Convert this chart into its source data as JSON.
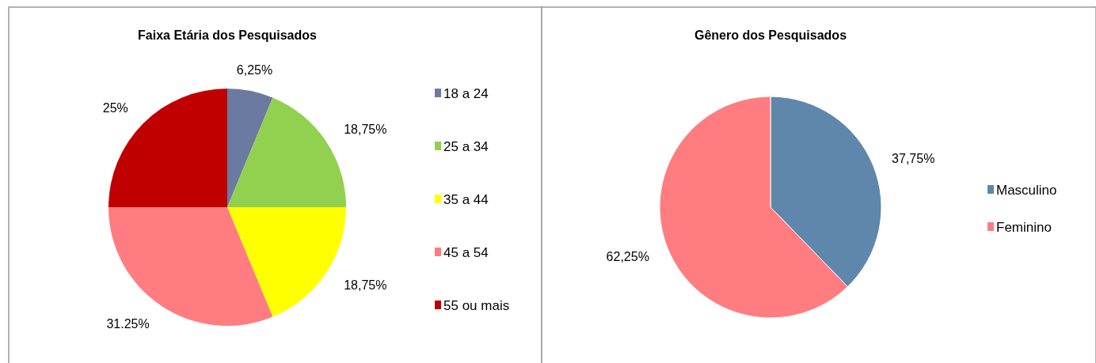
{
  "chart_data": [
    {
      "type": "pie",
      "title": "Faixa Etária dos Pesquisados",
      "categories": [
        "18 a 24",
        "25 a 34",
        "35 a 44",
        "45 a 54",
        "55 ou mais"
      ],
      "values": [
        6.25,
        18.75,
        18.75,
        31.25,
        25
      ],
      "colors": [
        "#6b7aa1",
        "#92d050",
        "#ffff00",
        "#ff7c80",
        "#c00000"
      ],
      "value_labels": [
        "6,25%",
        "18,75%",
        "18,75%",
        "31.25%",
        "25%"
      ],
      "legend": "right"
    },
    {
      "type": "pie",
      "title": "Gênero dos Pesquisados",
      "categories": [
        "Masculino",
        "Feminino"
      ],
      "values": [
        37.75,
        62.25
      ],
      "colors": [
        "#5f87ab",
        "#ff7c80"
      ],
      "value_labels": [
        "37,75%",
        "62,25%"
      ],
      "legend": "right"
    }
  ]
}
